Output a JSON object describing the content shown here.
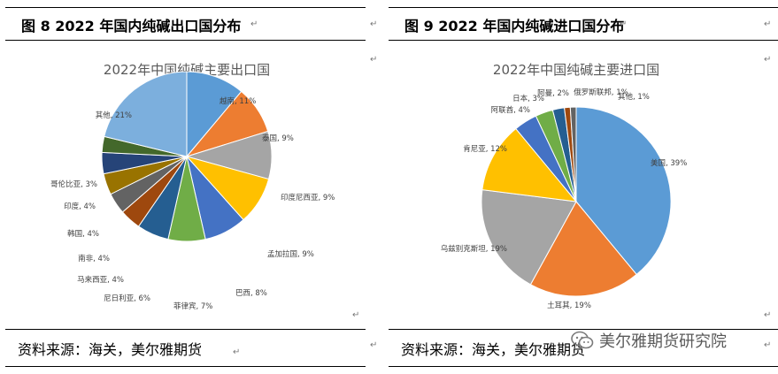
{
  "panels": [
    {
      "figure_title": "图 8 2022 年国内纯碱出口国分布",
      "source": "资料来源：海关，美尔雅期货",
      "chart_data": {
        "type": "pie",
        "title": "2022年中国纯碱主要出口国",
        "unit": "%",
        "categories": [
          "越南",
          "泰国",
          "印度尼西亚",
          "孟加拉国",
          "巴西",
          "菲律宾",
          "尼日利亚",
          "马来西亚",
          "南非",
          "韩国",
          "印度",
          "哥伦比亚",
          "其他"
        ],
        "values": [
          11,
          9,
          9,
          9,
          8,
          7,
          6,
          4,
          4,
          4,
          4,
          3,
          21
        ],
        "colors": [
          "#5b9bd5",
          "#ed7d31",
          "#a5a5a5",
          "#ffc000",
          "#4472c4",
          "#70ad47",
          "#255e91",
          "#9e480e",
          "#636363",
          "#997300",
          "#264478",
          "#43682b",
          "#7cafdd"
        ],
        "labels": [
          "越南, 11%",
          "泰国, 9%",
          "印度尼西亚, 9%",
          "孟加拉国, 9%",
          "巴西, 8%",
          "菲律宾, 7%",
          "尼日利亚, 6%",
          "马来西亚, 4%",
          "南非, 4%",
          "韩国, 4%",
          "印度, 4%",
          "哥伦比亚, 3%",
          "其他, 21%"
        ]
      }
    },
    {
      "figure_title": "图 9 2022 年国内纯碱进口国分布",
      "source": "资料来源：海关，美尔雅期货",
      "chart_data": {
        "type": "pie",
        "title": "2022年中国纯碱主要进口国",
        "unit": "%",
        "categories": [
          "美国",
          "土耳其",
          "乌兹别克斯坦",
          "肯尼亚",
          "阿联酋",
          "日本",
          "阿曼",
          "俄罗斯联邦",
          "其他"
        ],
        "values": [
          39,
          19,
          19,
          12,
          4,
          3,
          2,
          1,
          1
        ],
        "colors": [
          "#5b9bd5",
          "#ed7d31",
          "#a5a5a5",
          "#ffc000",
          "#4472c4",
          "#70ad47",
          "#255e91",
          "#9e480e",
          "#636363"
        ],
        "labels": [
          "美国, 39%",
          "土耳其, 19%",
          "乌兹别克斯坦, 19%",
          "肯尼亚, 12%",
          "阿联酋, 4%",
          "日本, 3%",
          "阿曼, 2%",
          "俄罗斯联邦, 1%",
          "其他, 1%"
        ]
      }
    }
  ],
  "watermark": {
    "text": "美尔雅期货研究院",
    "icon": "wechat-icon"
  },
  "marks": {
    "paragraph_mark": "↵"
  }
}
